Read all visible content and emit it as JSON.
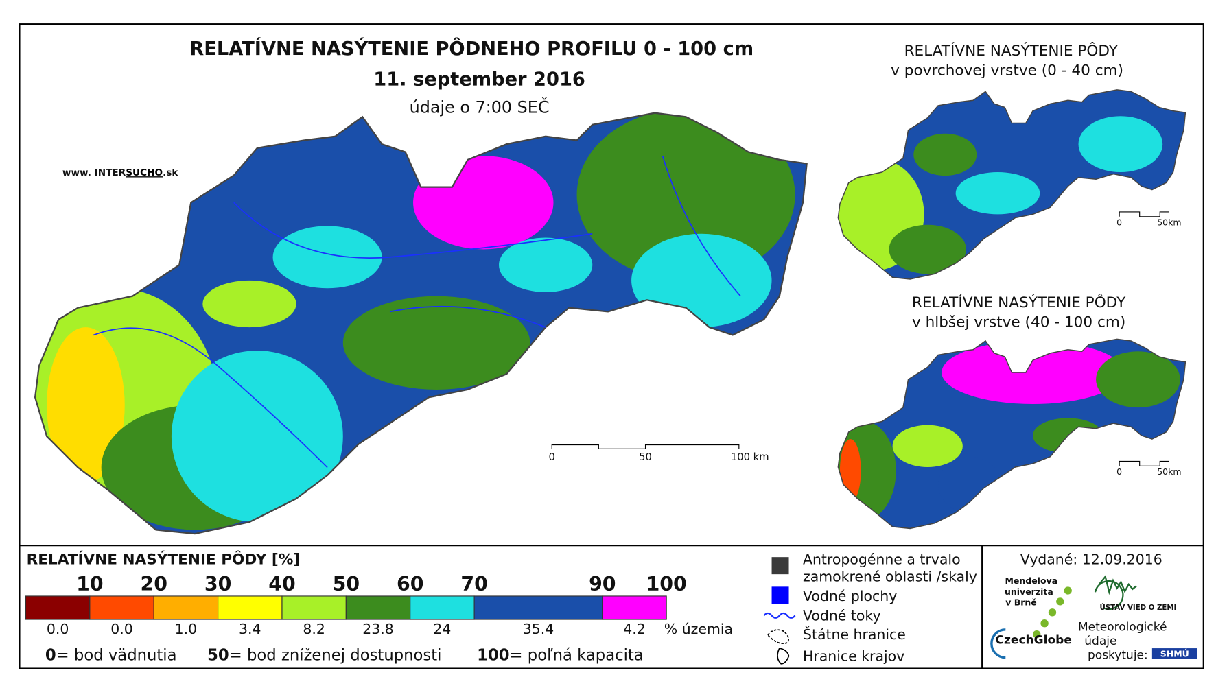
{
  "title": "RELATÍVNE NASÝTENIE PÔDNEHO PROFILU 0 - 100 cm",
  "date": "11. september 2016",
  "time_note": "údaje o 7:00 SEČ",
  "website": {
    "prefix": "www. INTER",
    "highlight": "SUCHO",
    "suffix": ".sk"
  },
  "main_scale": [
    "0",
    "50",
    "100 km"
  ],
  "insets": [
    {
      "title": "RELATÍVNE NASÝTENIE PÔDY",
      "subtitle": "v povrchovej vrstve (0 - 40 cm)",
      "scale": [
        "0",
        "50km"
      ]
    },
    {
      "title": "RELATÍVNE NASÝTENIE PÔDY",
      "subtitle": "v hlbšej vrstve (40 - 100 cm)",
      "scale": [
        "0",
        "50km"
      ]
    }
  ],
  "legend": {
    "title": "RELATÍVNE NASÝTENIE PÔDY [%]",
    "bounds": [
      10,
      20,
      30,
      40,
      50,
      60,
      70,
      90,
      100
    ],
    "colors": [
      "#8b0000",
      "#ff4a00",
      "#ffae00",
      "#ffff00",
      "#a8f028",
      "#3c8c1e",
      "#1ee0e0",
      "#1a4faa",
      "#ff00ff"
    ],
    "shares": [
      {
        "value": 0,
        "label": "0.0"
      },
      {
        "value": 0,
        "label": "0.0"
      },
      {
        "value": 1,
        "label": "1.0"
      },
      3.4,
      8.2,
      23.8,
      24,
      {
        "value": 35.4,
        "label": "35.4"
      },
      4.2
    ],
    "share_unit": "% územia",
    "notes": [
      {
        "value": "0",
        "text": "= bod vädnutia"
      },
      {
        "value": "50",
        "text": "= bod zníženej dostupnosti"
      },
      {
        "value": "100",
        "text": "= poľná kapacita"
      }
    ]
  },
  "symbols": [
    "Antropogénne a trvalo",
    "zamokrené oblasti /skaly",
    "Vodné plochy",
    "Vodné toky",
    "Štátne hranice",
    "Hranice krajov"
  ],
  "issued": "Vydané: 12.09.2016",
  "logos": {
    "mendel": [
      "Mendelova",
      "univerzita",
      "v Brně"
    ],
    "czechglobe": "CzechGlobe",
    "uvz": "ÚSTAV VIED O ZEMI",
    "shmu_note": [
      "Meteorologické",
      "údaje",
      "poskytuje:"
    ],
    "shmu": "SHMÚ"
  }
}
